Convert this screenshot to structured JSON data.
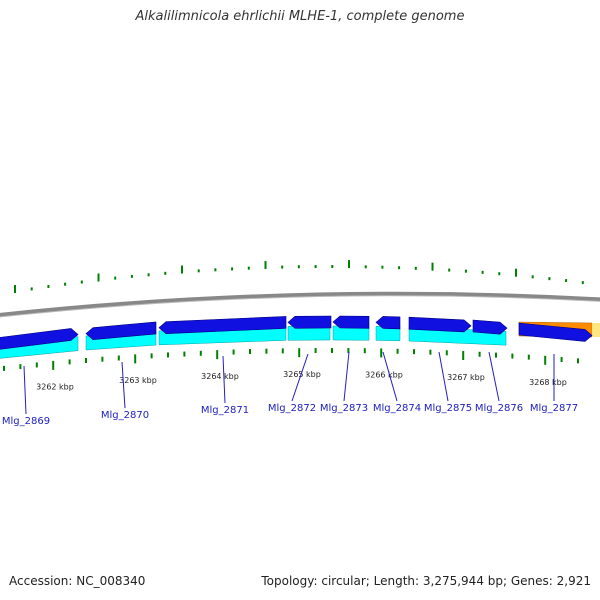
{
  "title": "Alkalilimnicola ehrlichii MLHE-1, complete genome",
  "footer": {
    "accession": "Accession: NC_008340",
    "summary": "Topology: circular; Length: 3,275,944 bp; Genes: 2,921"
  },
  "colors": {
    "forward_strand": "#1010e0",
    "reverse_strand": "#00ffff",
    "rna_gene": "#ff8c00",
    "tick": "#008000",
    "backbone": "#888888",
    "label": "#2020c0"
  },
  "axis": {
    "unit": "kbp",
    "ticks": [
      "3262 kbp",
      "3263 kbp",
      "3264 kbp",
      "3265 kbp",
      "3266 kbp",
      "3267 kbp",
      "3268 kbp"
    ]
  },
  "genes": [
    "Mlg_2869",
    "Mlg_2870",
    "Mlg_2871",
    "Mlg_2872",
    "Mlg_2873",
    "Mlg_2874",
    "Mlg_2875",
    "Mlg_2876",
    "Mlg_2877"
  ]
}
